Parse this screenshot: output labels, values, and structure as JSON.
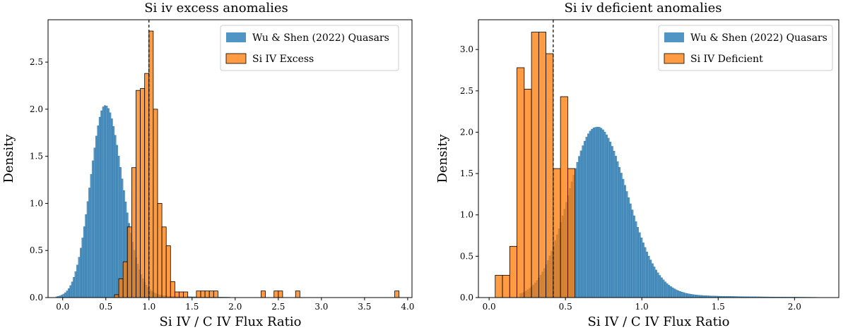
{
  "chart_data": [
    {
      "type": "bar",
      "title": "Si iv excess anomalies",
      "xlabel": "Si IV / C IV Flux Ratio",
      "ylabel": "Density",
      "xlim": [
        -0.17,
        4.05
      ],
      "ylim": [
        0,
        2.95
      ],
      "xticks": [
        0.0,
        0.5,
        1.0,
        1.5,
        2.0,
        2.5,
        3.0,
        3.5,
        4.0
      ],
      "xtick_labels": [
        "0.0",
        "0.5",
        "1.0",
        "1.5",
        "2.0",
        "2.5",
        "3.0",
        "3.5",
        "4.0"
      ],
      "yticks": [
        0.0,
        0.5,
        1.0,
        1.5,
        2.0,
        2.5
      ],
      "ytick_labels": [
        "0.0",
        "0.5",
        "1.0",
        "1.5",
        "2.0",
        "2.5"
      ],
      "legend_position": "top-right",
      "vline_x": 1.0,
      "series": [
        {
          "name": "Wu & Shen (2022) Quasars",
          "color": "#1f77b4",
          "shape": "skewed-normal",
          "params": {
            "mode": 0.49,
            "sigma_left": 0.17,
            "sigma_right": 0.2,
            "peak": 2.04,
            "tail_amp": 0.045,
            "tail_scale": 0.6,
            "bin_width": 0.02,
            "x_min": -0.08,
            "x_max": 3.45
          }
        },
        {
          "name": "Si IV Excess",
          "color": "#ff7f0e",
          "bin_edges": [
            0.6,
            0.65,
            0.7,
            0.75,
            0.8,
            0.85,
            0.9,
            0.95,
            1.0,
            1.05,
            1.1,
            1.15,
            1.2,
            1.25,
            1.3,
            1.35,
            1.4,
            1.45,
            1.5,
            1.55,
            1.6,
            1.65,
            1.7,
            1.75,
            1.8,
            1.85,
            1.9,
            1.95,
            2.0,
            2.05,
            2.1,
            2.15,
            2.2,
            2.25,
            2.3,
            2.35,
            2.4,
            2.45,
            2.5,
            2.55,
            2.6,
            2.65,
            2.7,
            2.75,
            2.8,
            2.85,
            2.9,
            2.95,
            3.0,
            3.05,
            3.1,
            3.15,
            3.2,
            3.25,
            3.3,
            3.35,
            3.4,
            3.45,
            3.5,
            3.55,
            3.6,
            3.65,
            3.7,
            3.75,
            3.8,
            3.85,
            3.9
          ],
          "values": [
            0.03,
            0.2,
            0.38,
            0.75,
            1.38,
            2.2,
            2.22,
            2.38,
            2.83,
            2.0,
            1.0,
            0.75,
            0.55,
            0.17,
            0.06,
            0.06,
            0.06,
            0.0,
            0.0,
            0.07,
            0.07,
            0.07,
            0.07,
            0.07,
            0.0,
            0.0,
            0.0,
            0.0,
            0.0,
            0.0,
            0.0,
            0.0,
            0.0,
            0.0,
            0.07,
            0.0,
            0.0,
            0.07,
            0.07,
            0.0,
            0.0,
            0.0,
            0.07,
            0.0,
            0.0,
            0.0,
            0.0,
            0.0,
            0.0,
            0.0,
            0.0,
            0.0,
            0.0,
            0.0,
            0.0,
            0.0,
            0.0,
            0.0,
            0.0,
            0.0,
            0.0,
            0.0,
            0.0,
            0.0,
            0.0,
            0.07
          ]
        }
      ]
    },
    {
      "type": "bar",
      "title": "Si iv deficient anomalies",
      "xlabel": "Si IV / C IV Flux Ratio",
      "ylabel": "Density",
      "xlim": [
        -0.07,
        2.29
      ],
      "ylim": [
        0,
        3.36
      ],
      "xticks": [
        0.0,
        0.5,
        1.0,
        1.5,
        2.0
      ],
      "xtick_labels": [
        "0.0",
        "0.5",
        "1.0",
        "1.5",
        "2.0"
      ],
      "yticks": [
        0.0,
        0.5,
        1.0,
        1.5,
        2.0,
        2.5,
        3.0
      ],
      "ytick_labels": [
        "0.0",
        "0.5",
        "1.0",
        "1.5",
        "2.0",
        "2.5",
        "3.0"
      ],
      "legend_position": "top-right",
      "vline_x": 0.42,
      "series": [
        {
          "name": "Wu & Shen (2022) Quasars",
          "color": "#1f77b4",
          "shape": "skewed-normal",
          "params": {
            "mode": 0.7,
            "sigma_left": 0.18,
            "sigma_right": 0.2,
            "peak": 2.06,
            "tail_amp": 0.1,
            "tail_scale": 0.45,
            "bin_width": 0.012,
            "x_min": 0.2,
            "x_max": 2.2
          }
        },
        {
          "name": "Si IV Deficient",
          "color": "#ff7f0e",
          "bin_edges": [
            0.04,
            0.0875,
            0.135,
            0.1825,
            0.23,
            0.2775,
            0.325,
            0.3725,
            0.42,
            0.4675,
            0.515,
            0.5625
          ],
          "values": [
            0.27,
            0.27,
            0.62,
            2.78,
            2.52,
            3.21,
            3.21,
            2.95,
            1.56,
            2.43,
            1.56
          ]
        }
      ]
    }
  ]
}
